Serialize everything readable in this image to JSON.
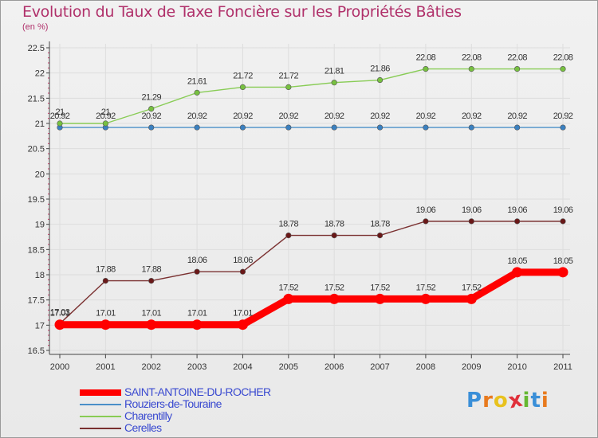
{
  "title": "Evolution du Taux de Taxe Foncière sur les Propriétés Bâties",
  "unit_label": "(en %)",
  "logo_text": "Proxiti",
  "colors": {
    "title": "#b0306a",
    "legend_text": "#3a4ad0",
    "axis": "#444444",
    "grid": "#dddddd",
    "logo": [
      "#3a8fd8",
      "#e87a1e",
      "#e8c21e",
      "#e0303a",
      "#66b832",
      "#3a8fd8",
      "#e87a1e"
    ]
  },
  "chart_data": {
    "type": "line",
    "title": "Evolution du Taux de Taxe Foncière sur les Propriétés Bâties",
    "ylabel": "(en %)",
    "xlabel": "",
    "x": [
      "2000",
      "2001",
      "2002",
      "2003",
      "2004",
      "2005",
      "2006",
      "2007",
      "2008",
      "2009",
      "2010",
      "2011"
    ],
    "ylim": [
      16.5,
      22.5
    ],
    "yticks": [
      "16.5",
      "17",
      "17.5",
      "18",
      "18.5",
      "19",
      "19.5",
      "20",
      "20.5",
      "21",
      "21.5",
      "22",
      "22.5"
    ],
    "grid": true,
    "legend_position": "bottom-left",
    "series": [
      {
        "name": "SAINT-ANTOINE-DU-ROCHER",
        "color": "#ff0000",
        "emphasis": true,
        "values": [
          17.01,
          17.01,
          17.01,
          17.01,
          17.01,
          17.52,
          17.52,
          17.52,
          17.52,
          17.52,
          18.05,
          18.05
        ],
        "labels": [
          "17.01",
          "17.01",
          "17.01",
          "17.01",
          "17.01",
          "17.52",
          "17.52",
          "17.52",
          "17.52",
          "17.52",
          "18.05",
          "18.05"
        ]
      },
      {
        "name": "Rouziers-de-Touraine",
        "color": "#4a8fc8",
        "marker": "#3a80c0",
        "emphasis": false,
        "values": [
          20.92,
          20.92,
          20.92,
          20.92,
          20.92,
          20.92,
          20.92,
          20.92,
          20.92,
          20.92,
          20.92,
          20.92
        ],
        "labels": [
          "20.92",
          "20.92",
          "20.92",
          "20.92",
          "20.92",
          "20.92",
          "20.92",
          "20.92",
          "20.92",
          "20.92",
          "20.92",
          "20.92"
        ]
      },
      {
        "name": "Charentilly",
        "color": "#88cc55",
        "marker": "#77c040",
        "emphasis": false,
        "values": [
          21.0,
          21.0,
          21.29,
          21.61,
          21.72,
          21.72,
          21.81,
          21.86,
          22.08,
          22.08,
          22.08,
          22.08
        ],
        "labels": [
          "21",
          "21",
          "21.29",
          "21.61",
          "21.72",
          "21.72",
          "21.81",
          "21.86",
          "22.08",
          "22.08",
          "22.08",
          "22.08"
        ]
      },
      {
        "name": "Cerelles",
        "color": "#7a3030",
        "marker": "#6a1818",
        "emphasis": false,
        "values": [
          17.03,
          17.88,
          17.88,
          18.06,
          18.06,
          18.78,
          18.78,
          18.78,
          19.06,
          19.06,
          19.06,
          19.06
        ],
        "labels": [
          "17.03",
          "17.88",
          "17.88",
          "18.06",
          "18.06",
          "18.78",
          "18.78",
          "18.78",
          "19.06",
          "19.06",
          "19.06",
          "19.06"
        ]
      }
    ]
  }
}
